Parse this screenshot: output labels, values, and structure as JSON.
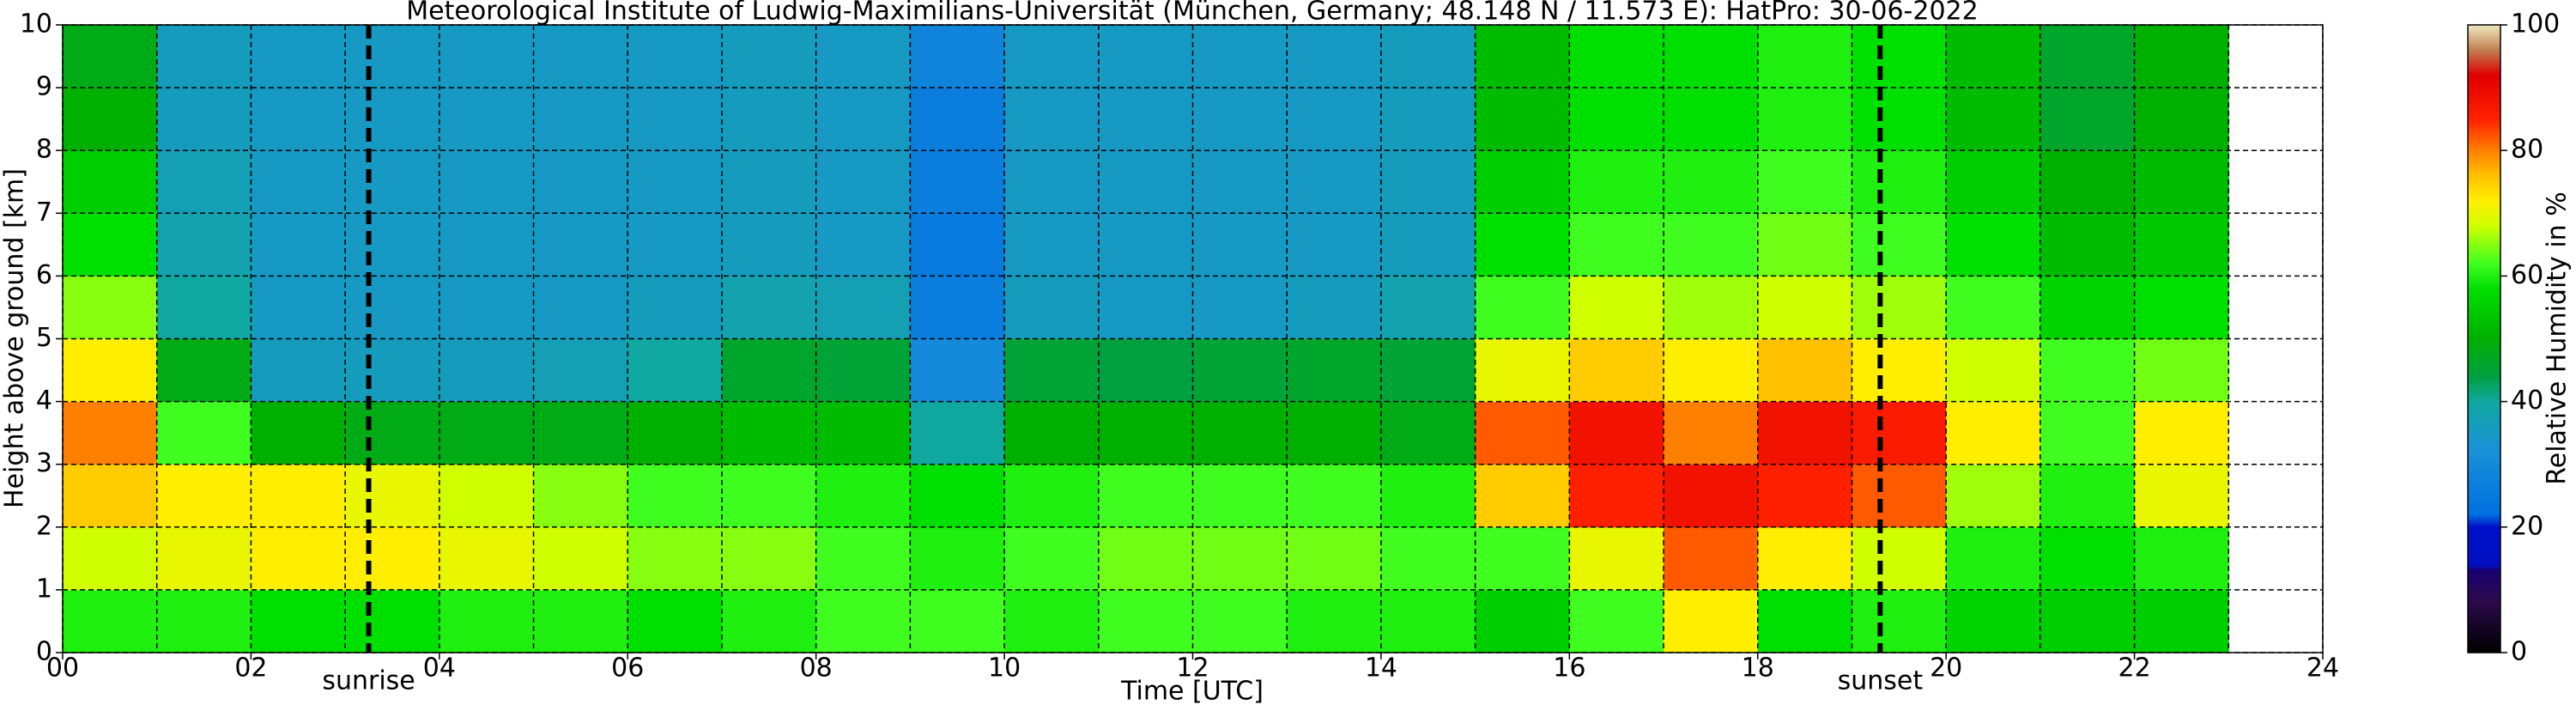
{
  "chart_data": {
    "type": "heatmap",
    "title": "Meteorological Institute of Ludwig-Maximilians-Universität (München, Germany; 48.148 N / 11.573 E):    HatPro: 30-06-2022",
    "xlabel": "Time [UTC]",
    "ylabel": "Height above ground [km]",
    "colorbar_label": "Relative Humidity in %",
    "xlim": [
      0,
      24
    ],
    "ylim": [
      0,
      10
    ],
    "clim": [
      0,
      100
    ],
    "xticks": [
      {
        "value": 0,
        "label": "00"
      },
      {
        "value": 2,
        "label": "02"
      },
      {
        "value": 4,
        "label": "04"
      },
      {
        "value": 6,
        "label": "06"
      },
      {
        "value": 8,
        "label": "08"
      },
      {
        "value": 10,
        "label": "10"
      },
      {
        "value": 12,
        "label": "12"
      },
      {
        "value": 14,
        "label": "14"
      },
      {
        "value": 16,
        "label": "16"
      },
      {
        "value": 18,
        "label": "18"
      },
      {
        "value": 20,
        "label": "20"
      },
      {
        "value": 22,
        "label": "22"
      },
      {
        "value": 24,
        "label": "24"
      }
    ],
    "xminorticks": [
      1,
      3,
      5,
      7,
      9,
      11,
      13,
      15,
      17,
      19,
      21,
      23
    ],
    "yticks": [
      0,
      1,
      2,
      3,
      4,
      5,
      6,
      7,
      8,
      9,
      10
    ],
    "cticks": [
      0,
      20,
      40,
      60,
      80,
      100
    ],
    "grid": true,
    "colorscale": [
      [
        0,
        "#000000"
      ],
      [
        8,
        "#2a0a4a"
      ],
      [
        13,
        "#1a0070"
      ],
      [
        14,
        "#0010c0"
      ],
      [
        20,
        "#0010c8"
      ],
      [
        22,
        "#0070e0"
      ],
      [
        32,
        "#1a90d8"
      ],
      [
        40,
        "#10a8a0"
      ],
      [
        44,
        "#00a040"
      ],
      [
        50,
        "#00b000"
      ],
      [
        58,
        "#00e000"
      ],
      [
        62,
        "#40ff20"
      ],
      [
        68,
        "#d0ff00"
      ],
      [
        72,
        "#ffee00"
      ],
      [
        76,
        "#ffc000"
      ],
      [
        80,
        "#ff8000"
      ],
      [
        85,
        "#ff2000"
      ],
      [
        92,
        "#e00000"
      ],
      [
        96,
        "#c08050"
      ],
      [
        100,
        "#f0e8c0"
      ]
    ],
    "x_edges": [
      0,
      1,
      2,
      3,
      4,
      5,
      6,
      7,
      8,
      9,
      10,
      11,
      12,
      13,
      14,
      15,
      16,
      17,
      18,
      19,
      20,
      21,
      22,
      23
    ],
    "y_edges": [
      0,
      1,
      2,
      3,
      4,
      5,
      6,
      7,
      8,
      9,
      10
    ],
    "z": [
      [
        60,
        68,
        75,
        80,
        72,
        65,
        58,
        55,
        50,
        48
      ],
      [
        60,
        70,
        72,
        62,
        48,
        40,
        38,
        37,
        36,
        36
      ],
      [
        58,
        72,
        72,
        50,
        36,
        35,
        35,
        35,
        35,
        35
      ],
      [
        58,
        72,
        70,
        48,
        36,
        35,
        35,
        35,
        35,
        35
      ],
      [
        60,
        70,
        68,
        48,
        36,
        35,
        35,
        35,
        35,
        35
      ],
      [
        60,
        68,
        65,
        48,
        37,
        35,
        35,
        35,
        35,
        35
      ],
      [
        58,
        65,
        62,
        50,
        40,
        36,
        35,
        35,
        35,
        35
      ],
      [
        60,
        65,
        62,
        52,
        46,
        38,
        36,
        36,
        36,
        36
      ],
      [
        62,
        62,
        60,
        52,
        45,
        37,
        35,
        35,
        35,
        35
      ],
      [
        62,
        60,
        58,
        40,
        30,
        26,
        25,
        26,
        26,
        28
      ],
      [
        60,
        62,
        60,
        50,
        45,
        36,
        35,
        35,
        35,
        35
      ],
      [
        62,
        64,
        62,
        50,
        44,
        35,
        35,
        35,
        35,
        35
      ],
      [
        62,
        64,
        62,
        50,
        45,
        35,
        35,
        35,
        35,
        35
      ],
      [
        60,
        64,
        62,
        50,
        46,
        36,
        35,
        35,
        35,
        35
      ],
      [
        60,
        62,
        60,
        48,
        45,
        38,
        36,
        36,
        36,
        36
      ],
      [
        55,
        62,
        75,
        82,
        70,
        62,
        58,
        55,
        52,
        52
      ],
      [
        62,
        70,
        85,
        88,
        75,
        68,
        62,
        60,
        58,
        58
      ],
      [
        72,
        82,
        88,
        80,
        72,
        66,
        62,
        60,
        58,
        58
      ],
      [
        58,
        72,
        85,
        88,
        76,
        68,
        64,
        62,
        60,
        60
      ],
      [
        60,
        68,
        82,
        86,
        72,
        66,
        62,
        60,
        58,
        58
      ],
      [
        56,
        60,
        66,
        72,
        68,
        62,
        58,
        55,
        52,
        52
      ],
      [
        55,
        58,
        60,
        62,
        62,
        56,
        52,
        50,
        46,
        46
      ],
      [
        55,
        60,
        70,
        72,
        64,
        58,
        54,
        52,
        50,
        50
      ]
    ],
    "annotations": [
      {
        "text": "sunrise",
        "x": 3.25
      },
      {
        "text": "sunset",
        "x": 19.3
      }
    ]
  }
}
